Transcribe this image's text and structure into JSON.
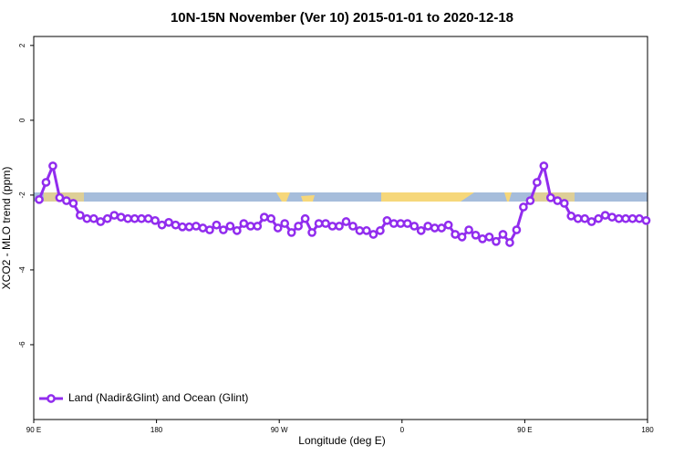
{
  "chart_data": {
    "type": "line",
    "title": "10N-15N November (Ver 10)   2015-01-01 to 2020-12-18",
    "xlabel": "Longitude (deg E)",
    "ylabel": "XCO2 - MLO trend (ppm)",
    "xlim": [
      90,
      540
    ],
    "ylim": [
      -8,
      2.24
    ],
    "xticks": [
      {
        "value": 90,
        "label": "90 E"
      },
      {
        "value": 180,
        "label": "180"
      },
      {
        "value": 270,
        "label": "90 W"
      },
      {
        "value": 360,
        "label": "0"
      },
      {
        "value": 450,
        "label": "90 E"
      },
      {
        "value": 540,
        "label": "180"
      }
    ],
    "yticks": [
      -6,
      -4,
      -2,
      0,
      2
    ],
    "legend": "bottomleft",
    "x": [
      94,
      99,
      104,
      109,
      114,
      119,
      124,
      129,
      134,
      139,
      144,
      149,
      154,
      159,
      164,
      169,
      174,
      179,
      184,
      189,
      194,
      199,
      204,
      209,
      214,
      219,
      224,
      229,
      234,
      239,
      244,
      249,
      254,
      259,
      264,
      269,
      274,
      279,
      284,
      289,
      294,
      299,
      304,
      309,
      314,
      319,
      324,
      329,
      334,
      339,
      344,
      349,
      354,
      359,
      364,
      369,
      374,
      379,
      384,
      389,
      394,
      399,
      404,
      409,
      414,
      419,
      424,
      429,
      434,
      439,
      444,
      449,
      454,
      459,
      464,
      469,
      474,
      479,
      484,
      489,
      494,
      499,
      504,
      509,
      514,
      519,
      524,
      529,
      534,
      539
    ],
    "series": [
      {
        "name": "Land (Nadir&Glint) and Ocean (Glint)",
        "color": "#912cee",
        "values": [
          -2.12,
          -1.66,
          -1.22,
          -2.07,
          -2.15,
          -2.22,
          -2.54,
          -2.63,
          -2.63,
          -2.71,
          -2.63,
          -2.54,
          -2.59,
          -2.63,
          -2.63,
          -2.63,
          -2.63,
          -2.68,
          -2.8,
          -2.73,
          -2.8,
          -2.85,
          -2.85,
          -2.83,
          -2.88,
          -2.93,
          -2.8,
          -2.93,
          -2.83,
          -2.95,
          -2.76,
          -2.83,
          -2.83,
          -2.59,
          -2.63,
          -2.88,
          -2.76,
          -3.0,
          -2.83,
          -2.63,
          -3.0,
          -2.76,
          -2.76,
          -2.83,
          -2.83,
          -2.71,
          -2.83,
          -2.95,
          -2.95,
          -3.05,
          -2.95,
          -2.68,
          -2.76,
          -2.76,
          -2.76,
          -2.83,
          -2.95,
          -2.83,
          -2.88,
          -2.88,
          -2.8,
          -3.05,
          -3.12,
          -2.93,
          -3.07,
          -3.17,
          -3.12,
          -3.24,
          -3.05,
          -3.27,
          -2.93,
          -2.32,
          -2.15,
          -1.66,
          -1.22,
          -2.07,
          -2.15,
          -2.22,
          -2.56,
          -2.63,
          -2.63,
          -2.71,
          -2.63,
          -2.54,
          -2.59,
          -2.63,
          -2.63,
          -2.63,
          -2.63,
          -2.68
        ]
      }
    ]
  }
}
